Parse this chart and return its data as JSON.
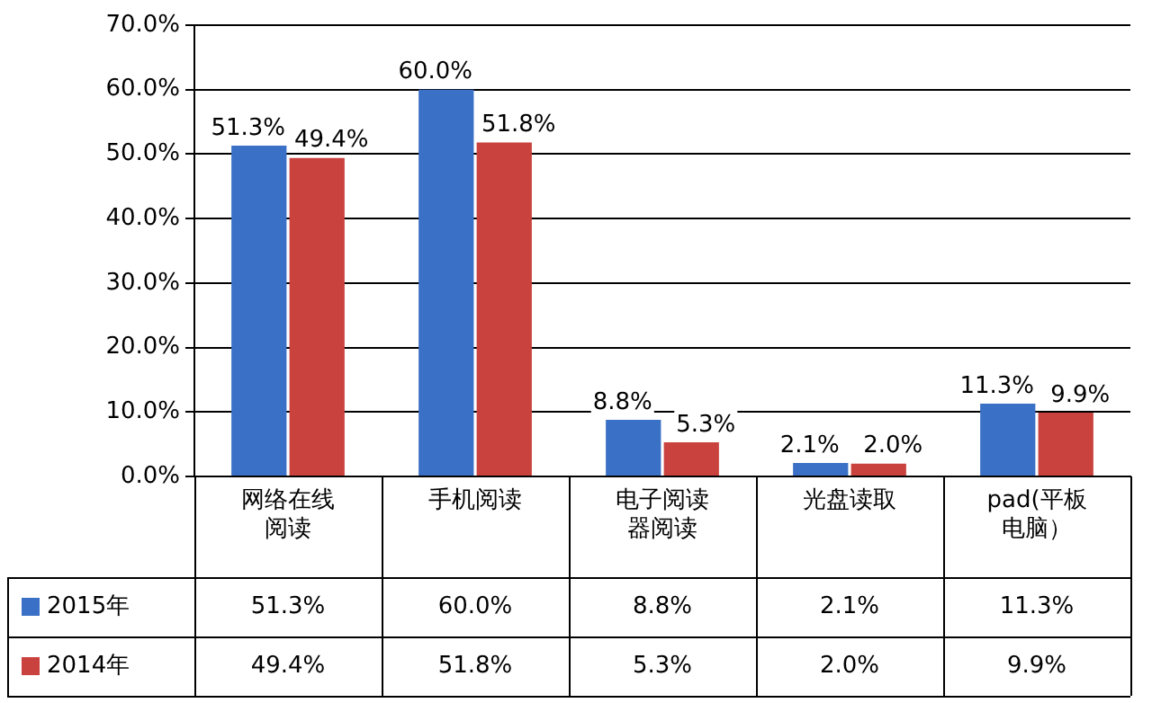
{
  "chart_data": {
    "type": "bar",
    "categories": [
      "网络在线阅读",
      "手机阅读",
      "电子阅读器阅读",
      "光盘读取",
      "pad(平板电脑）"
    ],
    "series": [
      {
        "name": "2015年",
        "color": "#3a70c6",
        "values": [
          51.3,
          60.0,
          8.8,
          2.1,
          11.3
        ],
        "value_labels": [
          "51.3%",
          "60.0%",
          "8.8%",
          "2.1%",
          "11.3%"
        ]
      },
      {
        "name": "2014年",
        "color": "#c9423d",
        "values": [
          49.4,
          51.8,
          5.3,
          2.0,
          9.9
        ],
        "value_labels": [
          "49.4%",
          "51.8%",
          "5.3%",
          "2.0%",
          "9.9%"
        ]
      }
    ],
    "ylim": [
      0,
      70
    ],
    "yticks": [
      {
        "value": 0,
        "label": "0.0%"
      },
      {
        "value": 10,
        "label": "10.0%"
      },
      {
        "value": 20,
        "label": "20.0%"
      },
      {
        "value": 30,
        "label": "30.0%"
      },
      {
        "value": 40,
        "label": "40.0%"
      },
      {
        "value": 50,
        "label": "50.0%"
      },
      {
        "value": 60,
        "label": "60.0%"
      },
      {
        "value": 70,
        "label": "70.0%"
      }
    ],
    "grid": "y",
    "legend": "bottom left"
  }
}
